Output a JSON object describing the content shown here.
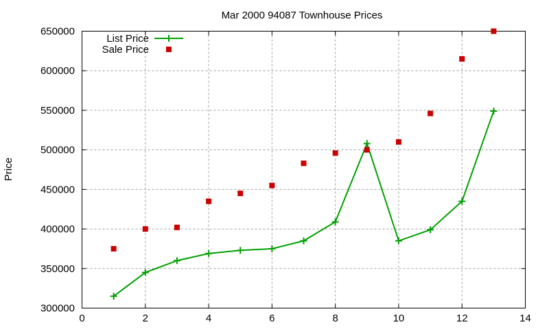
{
  "chart_data": {
    "type": "line",
    "title": "Mar 2000 94087 Townhouse Prices",
    "xlabel": "",
    "ylabel": "Price",
    "xlim": [
      0,
      14
    ],
    "ylim": [
      300000,
      650000
    ],
    "xticks": [
      0,
      2,
      4,
      6,
      8,
      10,
      12,
      14
    ],
    "yticks": [
      300000,
      350000,
      400000,
      450000,
      500000,
      550000,
      600000,
      650000
    ],
    "grid": true,
    "legend_position": "top-left",
    "series": [
      {
        "name": "List Price",
        "style": "linespoints",
        "marker": "plus",
        "color": "#00a000",
        "x": [
          1,
          2,
          3,
          4,
          5,
          6,
          7,
          8,
          9,
          10,
          11,
          12,
          13
        ],
        "values": [
          315000,
          345000,
          360000,
          369000,
          373000,
          375000,
          385000,
          409000,
          508000,
          385000,
          399000,
          435000,
          549000
        ]
      },
      {
        "name": "Sale Price",
        "style": "points",
        "marker": "square",
        "color": "#cc0000",
        "x": [
          1,
          2,
          3,
          4,
          5,
          6,
          7,
          8,
          9,
          10,
          11,
          12,
          13
        ],
        "values": [
          375000,
          400000,
          402000,
          435000,
          445000,
          455000,
          483000,
          496000,
          500000,
          510000,
          546000,
          615000,
          650000
        ]
      }
    ]
  }
}
